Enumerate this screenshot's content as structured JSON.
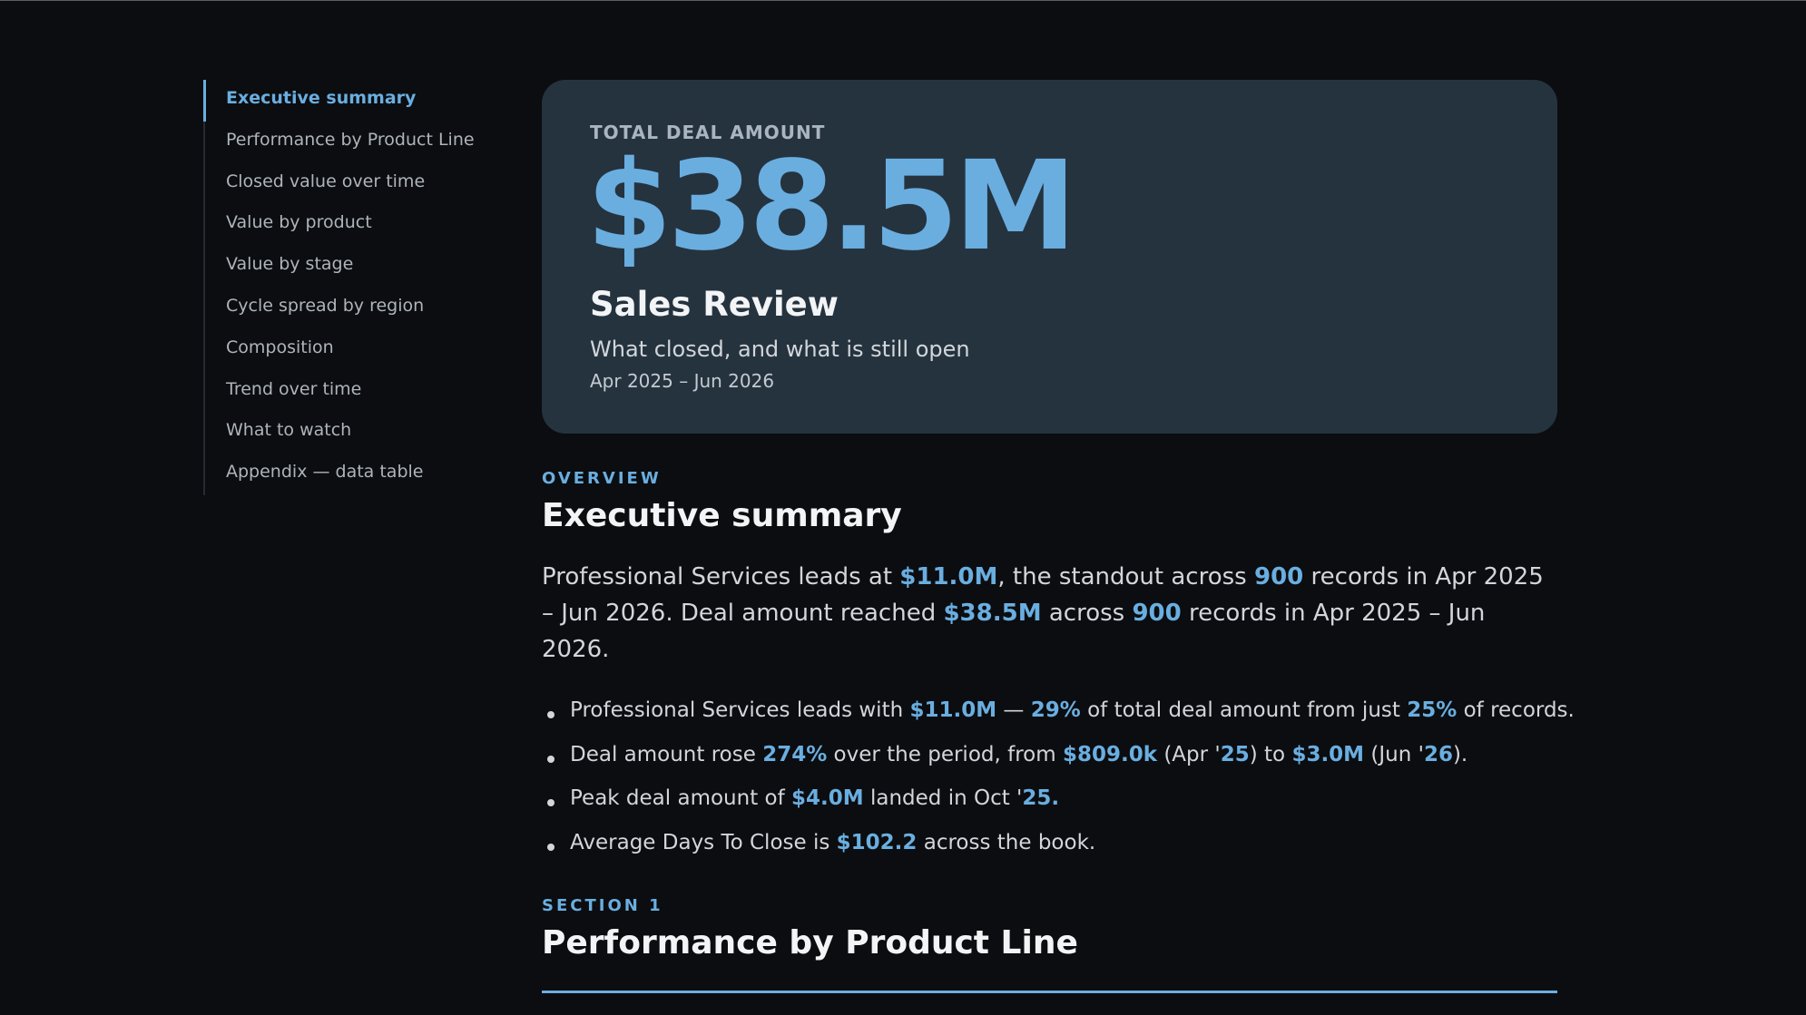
{
  "nav": {
    "items": [
      "Executive summary",
      "Performance by Product Line",
      "Closed value over time",
      "Value by product",
      "Value by stage",
      "Cycle spread by region",
      "Composition",
      "Trend over time",
      "What to watch",
      "Appendix — data table"
    ],
    "active": 0
  },
  "hero": {
    "kicker": "TOTAL DEAL AMOUNT",
    "value": "$38.5M",
    "title": "Sales Review",
    "subtitle": "What closed, and what is still open",
    "period": "Apr 2025 – Jun 2026"
  },
  "overview": {
    "eyebrow": "OVERVIEW",
    "heading": "Executive summary",
    "paragraph": [
      "Professional Services leads at ",
      {
        "strong": "$11.0M"
      },
      ", the standout across ",
      {
        "strong": "900"
      },
      " records in Apr 2025 – Jun 2026. Deal amount reached ",
      {
        "strong": "$38.5M"
      },
      " across ",
      {
        "strong": "900"
      },
      " records in Apr 2025 – Jun 2026."
    ],
    "bullets": [
      [
        "Professional Services leads with ",
        {
          "strong": "$11.0M"
        },
        " — ",
        {
          "strong": "29%"
        },
        " of total deal amount from just ",
        {
          "strong": "25%"
        },
        " of records."
      ],
      [
        "Deal amount rose ",
        {
          "strong": "274%"
        },
        " over the period, from ",
        {
          "strong": "$809.0k"
        },
        " (Apr '",
        {
          "strong": "25"
        },
        ") to ",
        {
          "strong": "$3.0M"
        },
        " (Jun '",
        {
          "strong": "26"
        },
        ")."
      ],
      [
        "Peak deal amount of ",
        {
          "strong": "$4.0M"
        },
        " landed in Oct '",
        {
          "strong": "25."
        }
      ],
      [
        "Average Days To Close is ",
        {
          "strong": "$102.2"
        },
        " across the book."
      ]
    ]
  },
  "section1": {
    "eyebrow": "SECTION 1",
    "heading": "Performance by Product Line"
  }
}
